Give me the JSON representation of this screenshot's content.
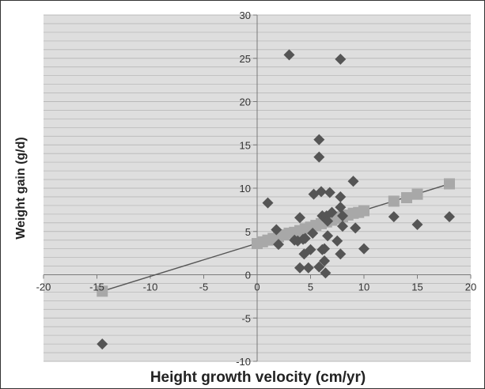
{
  "chart_data": {
    "type": "scatter",
    "xlabel": "Height growth velocity (cm/yr)",
    "ylabel": "Weight gain (g/d)",
    "xlim": [
      -20,
      20
    ],
    "ylim": [
      -10,
      30
    ],
    "x_ticks": [
      "-20",
      "-15",
      "-10",
      "-5",
      "0",
      "5",
      "10",
      "15",
      "20"
    ],
    "y_ticks": [
      "30",
      "25",
      "20",
      "15",
      "10",
      "5",
      "0",
      "-5",
      "-10"
    ],
    "grid": "horizontal minor lines",
    "legend": "none",
    "colors": {
      "observed": "#555555",
      "predicted": "#a8a8a8",
      "trendline": "#555555",
      "grid": "#b9b9b9",
      "plot_bg": "#dedede"
    },
    "series": [
      {
        "marker": "diamond",
        "points": [
          [
            -14.5,
            -8.0
          ],
          [
            1.0,
            8.3
          ],
          [
            1.8,
            5.2
          ],
          [
            2.0,
            3.5
          ],
          [
            3.0,
            25.4
          ],
          [
            3.5,
            4.0
          ],
          [
            3.8,
            3.9
          ],
          [
            4.0,
            0.8
          ],
          [
            4.0,
            6.6
          ],
          [
            4.3,
            4.1
          ],
          [
            4.4,
            2.4
          ],
          [
            4.5,
            4.2
          ],
          [
            4.8,
            0.8
          ],
          [
            5.0,
            2.9
          ],
          [
            5.2,
            4.8
          ],
          [
            5.3,
            9.3
          ],
          [
            5.8,
            15.6
          ],
          [
            5.8,
            13.6
          ],
          [
            5.8,
            0.9
          ],
          [
            6.0,
            9.6
          ],
          [
            6.1,
            2.9
          ],
          [
            6.1,
            6.8
          ],
          [
            6.3,
            1.6
          ],
          [
            6.3,
            3.0
          ],
          [
            6.4,
            0.2
          ],
          [
            6.5,
            6.8
          ],
          [
            6.6,
            6.2
          ],
          [
            6.6,
            4.5
          ],
          [
            6.8,
            9.5
          ],
          [
            7.0,
            7.2
          ],
          [
            7.5,
            3.9
          ],
          [
            7.8,
            24.9
          ],
          [
            7.8,
            9.0
          ],
          [
            7.8,
            7.8
          ],
          [
            7.8,
            2.4
          ],
          [
            8.0,
            6.8
          ],
          [
            8.0,
            5.6
          ],
          [
            9.0,
            10.8
          ],
          [
            9.2,
            5.4
          ],
          [
            10.0,
            3.0
          ],
          [
            12.8,
            6.7
          ],
          [
            15.0,
            5.8
          ],
          [
            18.0,
            6.7
          ]
        ]
      },
      {
        "marker": "square",
        "points": [
          [
            -14.5,
            -1.9
          ],
          [
            0,
            3.6
          ],
          [
            0.5,
            3.8
          ],
          [
            1.0,
            4.0
          ],
          [
            1.5,
            4.2
          ],
          [
            2.0,
            4.4
          ],
          [
            2.5,
            4.6
          ],
          [
            3.0,
            4.8
          ],
          [
            3.5,
            4.9
          ],
          [
            4.0,
            5.1
          ],
          [
            4.5,
            5.3
          ],
          [
            5.0,
            5.5
          ],
          [
            5.5,
            5.7
          ],
          [
            6.0,
            5.9
          ],
          [
            6.5,
            6.1
          ],
          [
            7.0,
            6.3
          ],
          [
            7.5,
            6.5
          ],
          [
            8.0,
            6.7
          ],
          [
            8.5,
            6.9
          ],
          [
            9.0,
            7.1
          ],
          [
            9.5,
            7.2
          ],
          [
            10.0,
            7.4
          ],
          [
            12.8,
            8.5
          ],
          [
            14.0,
            8.9
          ],
          [
            15.0,
            9.3
          ],
          [
            18.0,
            10.5
          ]
        ]
      }
    ],
    "trendline": {
      "type": "linear",
      "x": [
        -14.5,
        18.0
      ],
      "y": [
        -1.9,
        10.5
      ]
    }
  }
}
